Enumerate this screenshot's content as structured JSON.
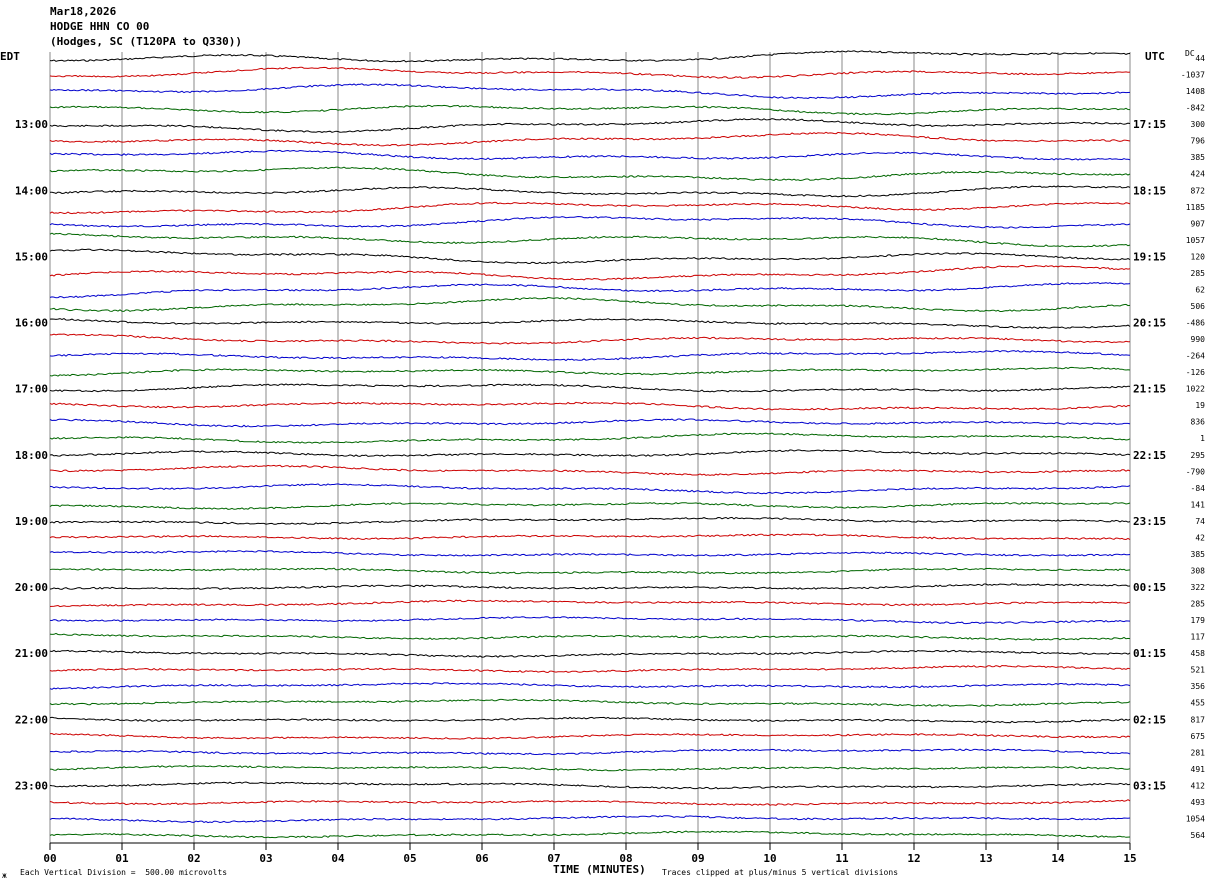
{
  "header": {
    "date": "Mar18,2026",
    "station": "HODGE HHN CO 00",
    "location": "(Hodges, SC (T120PA to Q330))"
  },
  "left_timezone": "EDT",
  "right_timezone": "UTC",
  "dc_label": "DC",
  "footer": {
    "scale_note": "Each Vertical Division =  500.00 microvolts",
    "clip_note": "Traces clipped at plus/minus 5 vertical divisions",
    "small_mark": "ж"
  },
  "colors": [
    "#000000",
    "#cc0000",
    "#0000cc",
    "#006600"
  ],
  "chart_data": {
    "type": "line",
    "title": "HODGE HHN CO 00",
    "xlabel": "TIME (MINUTES)",
    "ylabel": "",
    "x_ticks": [
      "00",
      "01",
      "02",
      "03",
      "04",
      "05",
      "06",
      "07",
      "08",
      "09",
      "10",
      "11",
      "12",
      "13",
      "14",
      "15"
    ],
    "xlim": [
      0,
      15
    ],
    "left_hour_labels": [
      "13:00",
      "14:00",
      "15:00",
      "16:00",
      "17:00",
      "18:00",
      "19:00",
      "20:00",
      "21:00",
      "22:00",
      "23:00"
    ],
    "right_hour_labels": [
      "17:15",
      "18:15",
      "19:15",
      "20:15",
      "21:15",
      "22:15",
      "23:15",
      "00:15",
      "01:15",
      "02:15",
      "03:15"
    ],
    "dc_offsets": [
      "44",
      "-1037",
      "1408",
      "-842",
      "300",
      "796",
      "385",
      "424",
      "872",
      "1185",
      "907",
      "1057",
      "120",
      "285",
      "62",
      "506",
      "-486",
      "990",
      "-264",
      "-126",
      "1022",
      "19",
      "836",
      "1",
      "295",
      "-790",
      "-84",
      "141",
      "74",
      "42",
      "385",
      "308",
      "322",
      "285",
      "179",
      "117",
      "458",
      "521",
      "356",
      "455",
      "817",
      "675",
      "281",
      "491",
      "412",
      "493",
      "1054",
      "564"
    ],
    "trace_count": 48,
    "traces_per_hour": 4,
    "trace_minutes": 15
  }
}
